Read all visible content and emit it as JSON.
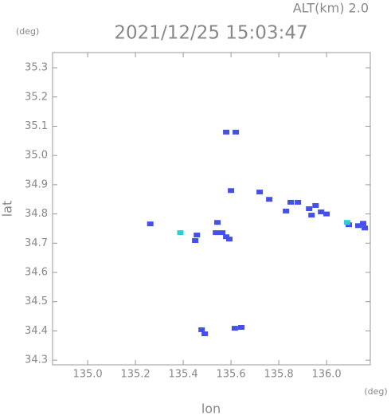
{
  "chart_data": {
    "type": "scatter",
    "title": "2021/12/25 15:03:47",
    "altitude_label": "ALT(km) 2.0",
    "y_unit": "(deg)",
    "x_unit": "(deg)",
    "x_label": "lon",
    "y_label": "lat",
    "xlim": [
      134.853,
      136.183
    ],
    "ylim": [
      34.284,
      35.352
    ],
    "xticks": [
      {
        "value": 135.0,
        "label": "135.0"
      },
      135.2,
      135.4,
      135.6,
      135.8,
      {
        "value": 136.0,
        "label": "136.0"
      }
    ],
    "yticks": [
      34.3,
      34.4,
      34.5,
      34.6,
      34.7,
      34.8,
      34.9,
      {
        "value": 35.0,
        "label": "35.0"
      },
      35.1,
      35.2,
      35.3
    ],
    "series": [
      {
        "color": "#4450e8",
        "x": [
          135.58,
          135.62,
          135.6,
          135.72,
          135.76,
          135.83,
          135.85,
          135.88,
          135.927,
          135.954,
          135.977,
          135.937,
          136.0,
          136.093,
          136.133,
          136.153,
          136.16,
          135.262,
          135.457,
          135.45,
          135.537,
          135.563,
          135.58,
          135.593,
          135.543,
          135.477,
          135.49,
          135.616,
          135.643
        ],
        "y": [
          35.08,
          35.08,
          34.88,
          34.875,
          34.85,
          34.81,
          34.84,
          34.84,
          34.818,
          34.829,
          34.807,
          34.796,
          34.8,
          34.763,
          34.76,
          34.768,
          34.752,
          34.766,
          34.728,
          34.709,
          34.736,
          34.736,
          34.722,
          34.714,
          34.771,
          34.404,
          34.39,
          34.409,
          34.412
        ]
      },
      {
        "color": "#2ad0d8",
        "x": [
          135.388,
          136.086
        ],
        "y": [
          34.736,
          34.771
        ]
      }
    ]
  }
}
